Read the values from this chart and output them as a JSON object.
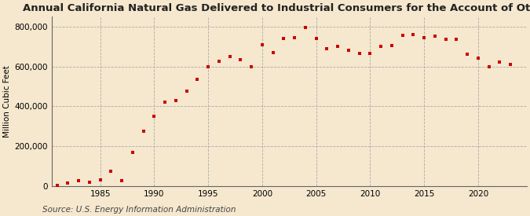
{
  "title": "Annual California Natural Gas Delivered to Industrial Consumers for the Account of Others",
  "ylabel": "Million Cubic Feet",
  "source": "Source: U.S. Energy Information Administration",
  "background_color": "#f5e8ce",
  "plot_background_color": "#fdf5e0",
  "marker_color": "#cc0000",
  "years": [
    1981,
    1982,
    1983,
    1984,
    1985,
    1986,
    1987,
    1988,
    1989,
    1990,
    1991,
    1992,
    1993,
    1994,
    1995,
    1996,
    1997,
    1998,
    1999,
    2000,
    2001,
    2002,
    2003,
    2004,
    2005,
    2006,
    2007,
    2008,
    2009,
    2010,
    2011,
    2012,
    2013,
    2014,
    2015,
    2016,
    2017,
    2018,
    2019,
    2020,
    2021,
    2022,
    2023
  ],
  "values": [
    3000,
    15000,
    25000,
    20000,
    30000,
    75000,
    25000,
    170000,
    275000,
    350000,
    420000,
    430000,
    475000,
    535000,
    600000,
    625000,
    650000,
    635000,
    600000,
    710000,
    670000,
    740000,
    745000,
    795000,
    740000,
    690000,
    700000,
    680000,
    665000,
    665000,
    700000,
    705000,
    755000,
    760000,
    745000,
    750000,
    735000,
    735000,
    660000,
    640000,
    600000,
    620000,
    610000
  ],
  "ylim": [
    0,
    850000
  ],
  "yticks": [
    0,
    200000,
    400000,
    600000,
    800000
  ],
  "ytick_labels": [
    "0",
    "200,000",
    "400,000",
    "600,000",
    "800,000"
  ],
  "xticks": [
    1985,
    1990,
    1995,
    2000,
    2005,
    2010,
    2015,
    2020
  ],
  "xlim": [
    1980.5,
    2024.5
  ],
  "grid_color": "#aaaaaa",
  "title_fontsize": 9.5,
  "axis_fontsize": 7.5,
  "source_fontsize": 7.5
}
